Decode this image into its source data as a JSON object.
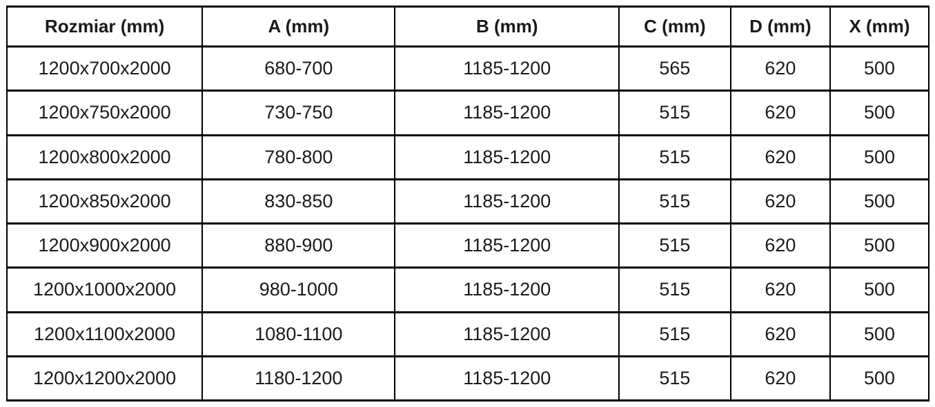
{
  "table": {
    "columns": [
      {
        "key": "rozmiar",
        "label": "Rozmiar (mm)"
      },
      {
        "key": "a",
        "label": "A (mm)"
      },
      {
        "key": "b",
        "label": "B (mm)"
      },
      {
        "key": "c",
        "label": "C (mm)"
      },
      {
        "key": "d",
        "label": "D (mm)"
      },
      {
        "key": "x",
        "label": "X (mm)"
      }
    ],
    "rows": [
      [
        "1200x700x2000",
        "680-700",
        "1185-1200",
        "565",
        "620",
        "500"
      ],
      [
        "1200x750x2000",
        "730-750",
        "1185-1200",
        "515",
        "620",
        "500"
      ],
      [
        "1200x800x2000",
        "780-800",
        "1185-1200",
        "515",
        "620",
        "500"
      ],
      [
        "1200x850x2000",
        "830-850",
        "1185-1200",
        "515",
        "620",
        "500"
      ],
      [
        "1200x900x2000",
        "880-900",
        "1185-1200",
        "515",
        "620",
        "500"
      ],
      [
        "1200x1000x2000",
        "980-1000",
        "1185-1200",
        "515",
        "620",
        "500"
      ],
      [
        "1200x1100x2000",
        "1080-1100",
        "1185-1200",
        "515",
        "620",
        "500"
      ],
      [
        "1200x1200x2000",
        "1180-1200",
        "1185-1200",
        "515",
        "620",
        "500"
      ]
    ],
    "style": {
      "border_color": "#000000",
      "text_color": "#1a1a1a",
      "background": "#ffffff",
      "header_bold": true
    }
  }
}
